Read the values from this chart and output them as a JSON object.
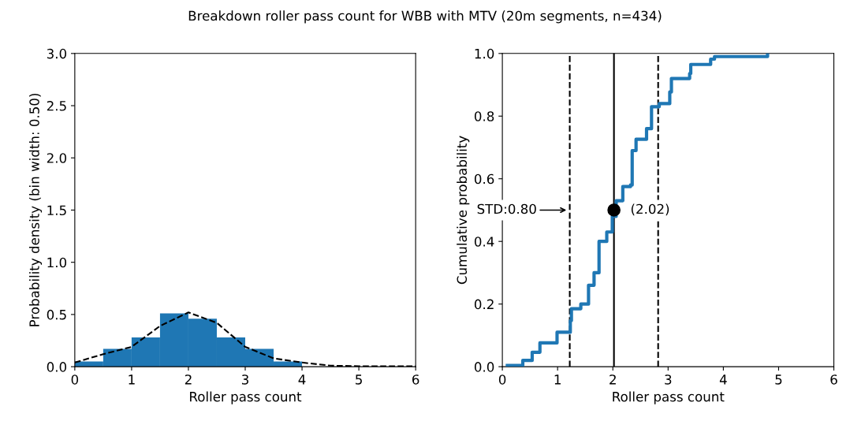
{
  "chart_data": [
    {
      "type": "histogram",
      "title": "Breakdown roller pass count for WBB with MTV (20m segments, n=434)",
      "xlabel": "Roller pass count",
      "ylabel": "Probability density (bin width: 0.50)",
      "series": [
        {
          "color": "#1f77b4",
          "bins": [
            0,
            0.5,
            1,
            1.5,
            2,
            2.5,
            3,
            3.5,
            4,
            4.5,
            5
          ],
          "values": [
            0.05,
            0.17,
            0.28,
            0.51,
            0.46,
            0.28,
            0.17,
            0.05,
            null,
            null
          ]
        },
        {
          "type": "line",
          "color": "#000000",
          "line_style": "dashed",
          "x": [
            0,
            0.5,
            1,
            1.5,
            2,
            2.5,
            3,
            3.5,
            4,
            4.5,
            5,
            6
          ],
          "values": [
            0.04,
            0.12,
            0.19,
            0.39,
            0.52,
            0.42,
            0.19,
            0.08,
            0.04,
            0.01,
            0.005,
            0.005
          ]
        }
      ],
      "xlim": [
        0,
        6
      ],
      "xticks": [
        0,
        1,
        2,
        3,
        4,
        5,
        6
      ],
      "ylim": [
        0,
        3
      ],
      "yticks": [
        {
          "value": 0,
          "label": "0.0"
        },
        {
          "value": 0.5,
          "label": "0.5"
        },
        {
          "value": 1,
          "label": "1.0"
        },
        {
          "value": 1.5,
          "label": "1.5"
        },
        {
          "value": 2,
          "label": "2.0"
        },
        {
          "value": 2.5,
          "label": "2.5"
        },
        {
          "value": 3,
          "label": "3.0"
        }
      ],
      "grid": false
    },
    {
      "type": "step",
      "xlabel": "Roller pass count",
      "ylabel": "Cumulative probability",
      "series": [
        {
          "color": "#1f77b4",
          "x": [
            0.09,
            0.37,
            0.54,
            0.68,
            0.99,
            1.23,
            1.25,
            1.42,
            1.56,
            1.66,
            1.75,
            1.89,
            1.99,
            2.06,
            2.18,
            2.32,
            2.35,
            2.42,
            2.61,
            2.7,
            2.84,
            3.03,
            3.06,
            3.39,
            3.41,
            3.77,
            3.84,
            4.8
          ],
          "values": [
            0.004,
            0.02,
            0.046,
            0.076,
            0.11,
            0.147,
            0.185,
            0.2,
            0.26,
            0.3,
            0.4,
            0.43,
            0.48,
            0.53,
            0.575,
            0.58,
            0.69,
            0.726,
            0.76,
            0.83,
            0.84,
            0.877,
            0.92,
            0.936,
            0.965,
            0.982,
            0.99,
            1.0
          ]
        },
        {
          "type": "scatter",
          "color": "#000000",
          "marker": "circle",
          "x": [
            2.02
          ],
          "values": [
            0.5
          ]
        }
      ],
      "ref_lines": [
        {
          "axis": "x",
          "value": 1.22,
          "line_style": "dashed",
          "color": "#000000"
        },
        {
          "axis": "x",
          "value": 2.02,
          "line_style": "solid",
          "color": "#000000"
        },
        {
          "axis": "x",
          "value": 2.82,
          "line_style": "dashed",
          "color": "#000000"
        }
      ],
      "annotations": [
        {
          "text": "STD:0.80",
          "x": 1.22,
          "y": 0.5
        },
        {
          "text": "(2.02)",
          "x": 2.02,
          "y": 0.5
        }
      ],
      "xlim": [
        0,
        6
      ],
      "xticks": [
        0,
        1,
        2,
        3,
        4,
        5,
        6
      ],
      "ylim": [
        0,
        1
      ],
      "yticks": [
        {
          "value": 0,
          "label": "0.0"
        },
        {
          "value": 0.2,
          "label": "0.2"
        },
        {
          "value": 0.4,
          "label": "0.4"
        },
        {
          "value": 0.6,
          "label": "0.6"
        },
        {
          "value": 0.8,
          "label": "0.8"
        },
        {
          "value": 1,
          "label": "1.0"
        }
      ],
      "grid": false
    }
  ]
}
